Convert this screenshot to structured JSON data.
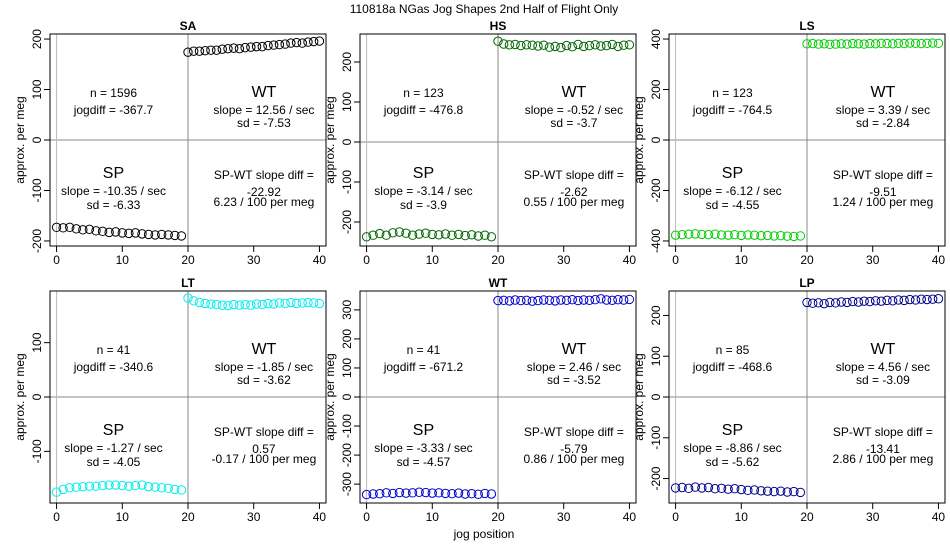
{
  "figure": {
    "title": "110818a   NGas Jog Shapes 2nd Half of Flight Only",
    "xlabel": "jog position",
    "ylabel": "approx. per meg"
  },
  "chart_data": [
    {
      "type": "scatter",
      "title": "SA",
      "color": "#000000",
      "xlim": [
        -1,
        41
      ],
      "ylim": [
        -210,
        210
      ],
      "xticks": [
        0,
        10,
        20,
        30,
        40
      ],
      "yticks": [
        -200,
        -100,
        0,
        100,
        200
      ],
      "n_label": "n = 1596",
      "jogdiff_label": "jogdiff = -367.7",
      "sp_slope": "slope = -10.35 / sec",
      "sp_sd": "sd = -6.33",
      "wt_slope": "slope = 12.56 / sec",
      "wt_sd": "sd = -7.53",
      "diff_value": "-22.92",
      "diff_norm": "6.23 / 100 per meg",
      "sp_points": [
        -173,
        -174,
        -173,
        -176,
        -178,
        -177,
        -180,
        -181,
        -183,
        -182,
        -184,
        -185,
        -184,
        -186,
        -187,
        -188,
        -187,
        -188,
        -189,
        -190
      ],
      "wt_points": [
        174,
        176,
        176,
        177,
        178,
        178,
        180,
        181,
        182,
        181,
        183,
        184,
        185,
        185,
        187,
        188,
        189,
        190,
        192,
        193,
        192,
        194,
        195,
        196
      ]
    },
    {
      "type": "scatter",
      "title": "HS",
      "color": "#006400",
      "xlim": [
        -1,
        41
      ],
      "ylim": [
        -260,
        270
      ],
      "xticks": [
        0,
        10,
        20,
        30,
        40
      ],
      "yticks": [
        -200,
        -100,
        0,
        100,
        200
      ],
      "n_label": "n = 123",
      "jogdiff_label": "jogdiff = -476.8",
      "sp_slope": "slope = -3.14 / sec",
      "sp_sd": "sd = -3.9",
      "wt_slope": "slope = -0.52 / sec",
      "wt_sd": "sd = -3.7",
      "diff_value": "-2.62",
      "diff_norm": "0.55 / 100 per meg",
      "sp_points": [
        -237,
        -233,
        -229,
        -233,
        -227,
        -225,
        -228,
        -233,
        -230,
        -228,
        -231,
        -232,
        -230,
        -233,
        -231,
        -234,
        -232,
        -235,
        -233,
        -237
      ],
      "wt_points": [
        252,
        245,
        243,
        244,
        241,
        243,
        242,
        240,
        242,
        237,
        239,
        236,
        241,
        238,
        244,
        239,
        241,
        243,
        240,
        241,
        244,
        239,
        242,
        243
      ]
    },
    {
      "type": "scatter",
      "title": "LS",
      "color": "#00cd00",
      "xlim": [
        -1,
        41
      ],
      "ylim": [
        -420,
        420
      ],
      "xticks": [
        0,
        10,
        20,
        30,
        40
      ],
      "yticks": [
        -400,
        -200,
        0,
        200,
        400
      ],
      "n_label": "n = 123",
      "jogdiff_label": "jogdiff = -764.5",
      "sp_slope": "slope = -6.12 / sec",
      "sp_sd": "sd = -4.55",
      "wt_slope": "slope = 3.39 / sec",
      "wt_sd": "sd = -2.84",
      "diff_value": "-9.51",
      "diff_norm": "1.24 / 100 per meg",
      "sp_points": [
        -377,
        -375,
        -373,
        -372,
        -374,
        -375,
        -373,
        -376,
        -377,
        -375,
        -378,
        -376,
        -377,
        -379,
        -378,
        -380,
        -379,
        -381,
        -382,
        -380
      ],
      "wt_points": [
        381,
        382,
        380,
        381,
        379,
        380,
        381,
        380,
        382,
        381,
        380,
        382,
        381,
        383,
        382,
        381,
        383,
        382,
        384,
        383,
        382,
        383,
        384,
        383
      ]
    },
    {
      "type": "scatter",
      "title": "LT",
      "color": "#00eeee",
      "xlim": [
        -1,
        41
      ],
      "ylim": [
        -195,
        195
      ],
      "xticks": [
        0,
        10,
        20,
        30,
        40
      ],
      "yticks": [
        -100,
        0,
        100
      ],
      "n_label": "n = 41",
      "jogdiff_label": "jogdiff = -340.6",
      "sp_slope": "slope = -1.27 / sec",
      "sp_sd": "sd = -4.05",
      "wt_slope": "slope = -1.85 / sec",
      "wt_sd": "sd = -3.62",
      "diff_value": "0.57",
      "diff_norm": "-0.17 / 100 per meg",
      "sp_points": [
        -175,
        -170,
        -167,
        -166,
        -165,
        -164,
        -164,
        -163,
        -162,
        -162,
        -163,
        -164,
        -163,
        -162,
        -165,
        -166,
        -167,
        -168,
        -170,
        -171
      ],
      "wt_points": [
        182,
        177,
        174,
        172,
        171,
        170,
        169,
        168,
        170,
        169,
        170,
        169,
        171,
        170,
        172,
        171,
        173,
        172,
        174,
        172,
        173,
        174,
        173,
        172
      ]
    },
    {
      "type": "scatter",
      "title": "WT",
      "color": "#0000cd",
      "xlim": [
        -1,
        41
      ],
      "ylim": [
        -365,
        365
      ],
      "xticks": [
        0,
        10,
        20,
        30,
        40
      ],
      "yticks": [
        -300,
        -200,
        -100,
        0,
        100,
        200,
        300
      ],
      "n_label": "n = 41",
      "jogdiff_label": "jogdiff = -671.2",
      "sp_slope": "slope = -3.33 / sec",
      "sp_sd": "sd = -4.57",
      "wt_slope": "slope = 2.46 / sec",
      "wt_sd": "sd = -3.52",
      "diff_value": "-5.79",
      "diff_norm": "0.86 / 100 per meg",
      "sp_points": [
        -336,
        -334,
        -333,
        -330,
        -332,
        -329,
        -331,
        -330,
        -328,
        -329,
        -331,
        -330,
        -332,
        -333,
        -331,
        -334,
        -333,
        -335,
        -332,
        -334
      ],
      "wt_points": [
        332,
        333,
        331,
        334,
        332,
        333,
        330,
        332,
        334,
        333,
        331,
        334,
        333,
        335,
        332,
        334,
        333,
        335,
        338,
        334,
        333,
        335,
        334,
        336
      ]
    },
    {
      "type": "scatter",
      "title": "LP",
      "color": "#00008b",
      "xlim": [
        -1,
        41
      ],
      "ylim": [
        -260,
        260
      ],
      "xticks": [
        0,
        10,
        20,
        30,
        40
      ],
      "yticks": [
        -200,
        -100,
        0,
        100,
        200
      ],
      "n_label": "n = 85",
      "jogdiff_label": "jogdiff = -468.6",
      "sp_slope": "slope = -8.86 / sec",
      "sp_sd": "sd = -5.62",
      "wt_slope": "slope = 4.56 / sec",
      "wt_sd": "sd = -3.09",
      "diff_value": "-13.41",
      "diff_norm": "2.86 / 100 per meg",
      "sp_points": [
        -223,
        -222,
        -224,
        -221,
        -223,
        -222,
        -225,
        -224,
        -226,
        -225,
        -227,
        -229,
        -228,
        -230,
        -231,
        -232,
        -231,
        -233,
        -232,
        -234
      ],
      "wt_points": [
        232,
        230,
        231,
        229,
        232,
        231,
        233,
        232,
        234,
        233,
        235,
        234,
        236,
        235,
        237,
        236,
        238,
        237,
        239,
        238,
        240,
        239,
        240,
        241
      ]
    }
  ]
}
